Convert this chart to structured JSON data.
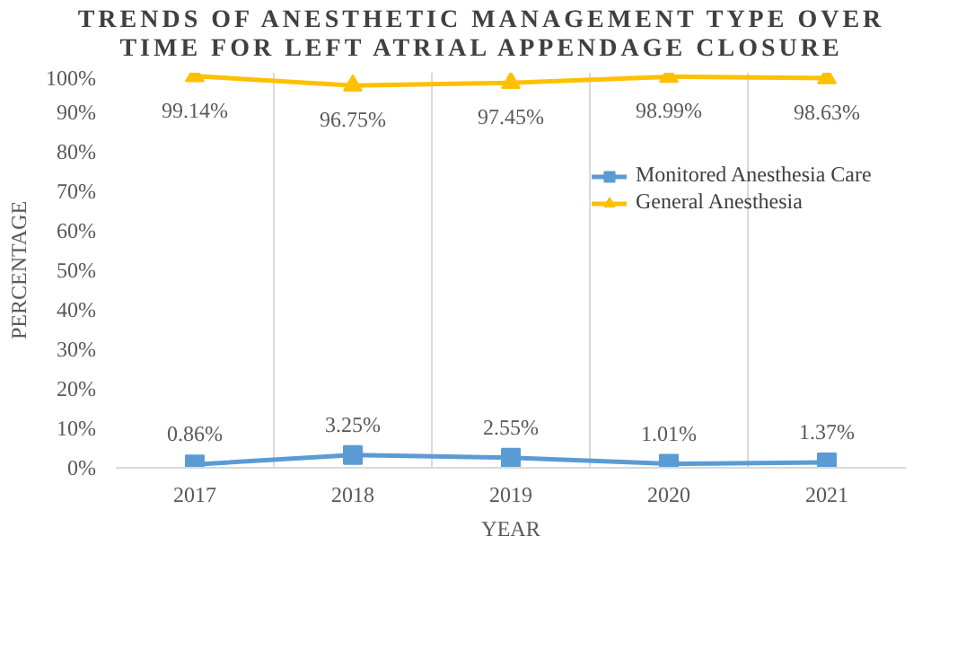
{
  "chart_data": {
    "type": "line",
    "title": "TRENDS OF ANESTHETIC MANAGEMENT TYPE OVER TIME FOR LEFT ATRIAL APPENDAGE CLOSURE",
    "xlabel": "YEAR",
    "ylabel": "PERCENTAGE",
    "categories": [
      "2017",
      "2018",
      "2019",
      "2020",
      "2021"
    ],
    "series": [
      {
        "name": "Monitored Anesthesia Care",
        "color": "#5b9bd5",
        "marker": "square",
        "values": [
          0.86,
          3.25,
          2.55,
          1.01,
          1.37
        ],
        "value_labels": [
          "0.86%",
          "3.25%",
          "2.55%",
          "1.01%",
          "1.37%"
        ]
      },
      {
        "name": "General Anesthesia",
        "color": "#ffc000",
        "marker": "triangle",
        "values": [
          99.14,
          96.75,
          97.45,
          98.99,
          98.63
        ],
        "value_labels": [
          "99.14%",
          "96.75%",
          "97.45%",
          "98.99%",
          "98.63%"
        ]
      }
    ],
    "ylim": [
      0,
      100
    ],
    "yticks": [
      {
        "value": 0,
        "label": "0%"
      },
      {
        "value": 10,
        "label": "10%"
      },
      {
        "value": 20,
        "label": "20%"
      },
      {
        "value": 30,
        "label": "30%"
      },
      {
        "value": 40,
        "label": "40%"
      },
      {
        "value": 50,
        "label": "50%"
      },
      {
        "value": 60,
        "label": "60%"
      },
      {
        "value": 70,
        "label": "70%"
      },
      {
        "value": 80,
        "label": "80%"
      },
      {
        "value": 90,
        "label": "90%"
      },
      {
        "value": 100,
        "label": "100%"
      }
    ],
    "grid": "x",
    "legend": "top right",
    "line_style": "solid"
  }
}
